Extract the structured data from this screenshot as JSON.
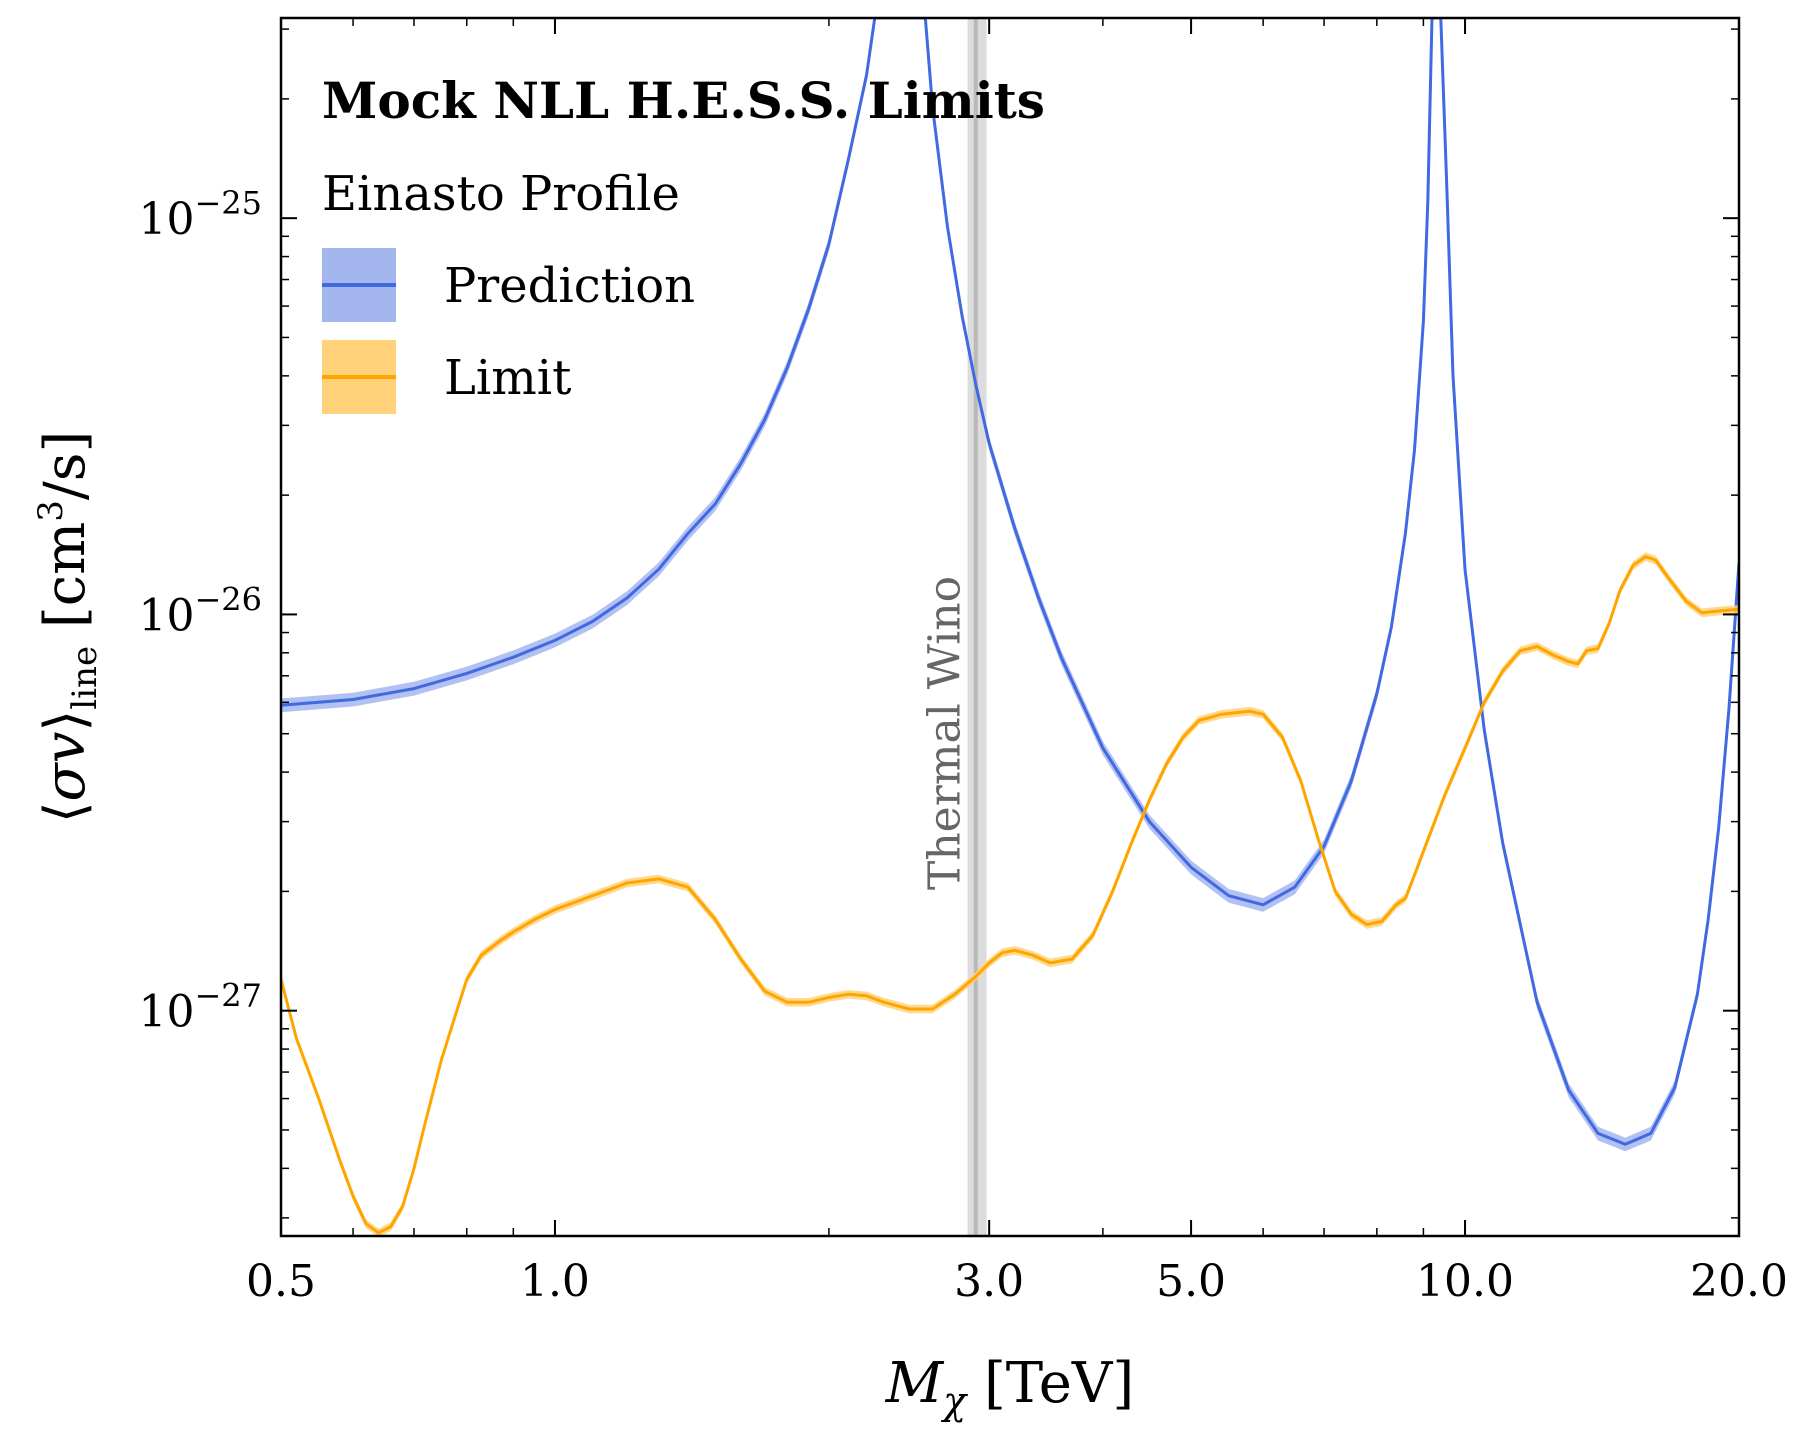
{
  "chart_data": {
    "type": "line",
    "title": "Mock NLL H.E.S.S. Limits",
    "subtitle": "Einasto Profile",
    "xlabel": "Mχ [TeV]",
    "ylabel": "⟨σv⟩line [cm3/s]",
    "xscale": "log",
    "yscale": "log",
    "xlim": [
      0.5,
      20.0
    ],
    "ylim": [
      2.7e-28,
      3.2e-25
    ],
    "x_ticks": [
      "0.5",
      "1.0",
      "3.0",
      "5.0",
      "10.0",
      "20.0"
    ],
    "x_tick_values": [
      0.5,
      1.0,
      3.0,
      5.0,
      10.0,
      20.0
    ],
    "y_ticks": [
      "10−27",
      "10−26",
      "10−25"
    ],
    "y_tick_values": [
      1e-27,
      1e-26,
      1e-25
    ],
    "legend_position": "top-left",
    "annotation": {
      "text": "Thermal Wino",
      "x": 2.9,
      "band": [
        2.84,
        2.98
      ]
    },
    "series": [
      {
        "name": "Prediction",
        "color": "#4169e1",
        "band_color": "#a4b6ee",
        "band_rel_width": 0.04,
        "points": [
          [
            0.5,
            5.9e-27
          ],
          [
            0.6,
            6.1e-27
          ],
          [
            0.7,
            6.5e-27
          ],
          [
            0.8,
            7.1e-27
          ],
          [
            0.9,
            7.8e-27
          ],
          [
            1.0,
            8.6e-27
          ],
          [
            1.1,
            9.6e-27
          ],
          [
            1.2,
            1.1e-26
          ],
          [
            1.3,
            1.3e-26
          ],
          [
            1.4,
            1.6e-26
          ],
          [
            1.5,
            1.9e-26
          ],
          [
            1.6,
            2.4e-26
          ],
          [
            1.7,
            3.1e-26
          ],
          [
            1.8,
            4.2e-26
          ],
          [
            1.9,
            5.9e-26
          ],
          [
            2.0,
            8.6e-26
          ],
          [
            2.1,
            1.4e-25
          ],
          [
            2.2,
            2.3e-25
          ],
          [
            2.25,
            3.3e-25
          ],
          [
            2.55,
            3.3e-25
          ],
          [
            2.6,
            1.9e-25
          ],
          [
            2.7,
            9.5e-26
          ],
          [
            2.8,
            5.7e-26
          ],
          [
            2.9,
            3.8e-26
          ],
          [
            3.0,
            2.7e-26
          ],
          [
            3.2,
            1.65e-26
          ],
          [
            3.4,
            1.1e-26
          ],
          [
            3.6,
            7.8e-27
          ],
          [
            4.0,
            4.6e-27
          ],
          [
            4.5,
            3e-27
          ],
          [
            5.0,
            2.3e-27
          ],
          [
            5.5,
            1.95e-27
          ],
          [
            6.0,
            1.85e-27
          ],
          [
            6.5,
            2.05e-27
          ],
          [
            7.0,
            2.6e-27
          ],
          [
            7.5,
            3.8e-27
          ],
          [
            8.0,
            6.3e-27
          ],
          [
            8.3,
            9.3e-27
          ],
          [
            8.6,
            1.6e-26
          ],
          [
            8.8,
            2.6e-26
          ],
          [
            9.0,
            5.5e-26
          ],
          [
            9.1,
            1.1e-25
          ],
          [
            9.2,
            3.3e-25
          ],
          [
            9.4,
            3.3e-25
          ],
          [
            9.55,
            1.2e-25
          ],
          [
            9.7,
            4e-26
          ],
          [
            10.0,
            1.3e-26
          ],
          [
            10.5,
            5.1e-27
          ],
          [
            11.0,
            2.65e-27
          ],
          [
            12.0,
            1.05e-27
          ],
          [
            13.0,
            6.3e-28
          ],
          [
            14.0,
            4.9e-28
          ],
          [
            15.0,
            4.6e-28
          ],
          [
            16.0,
            4.9e-28
          ],
          [
            17.0,
            6.4e-28
          ],
          [
            18.0,
            1.1e-27
          ],
          [
            18.5,
            1.7e-27
          ],
          [
            19.0,
            2.9e-27
          ],
          [
            19.5,
            5.8e-27
          ],
          [
            20.0,
            1.35e-26
          ]
        ]
      },
      {
        "name": "Limit",
        "color": "#ffa500",
        "band_color": "#ffd27a",
        "band_rel_width": 0.025,
        "points": [
          [
            0.5,
            1.2e-27
          ],
          [
            0.52,
            8.5e-28
          ],
          [
            0.55,
            6e-28
          ],
          [
            0.58,
            4.2e-28
          ],
          [
            0.6,
            3.4e-28
          ],
          [
            0.62,
            2.9e-28
          ],
          [
            0.64,
            2.75e-28
          ],
          [
            0.66,
            2.85e-28
          ],
          [
            0.68,
            3.2e-28
          ],
          [
            0.7,
            4e-28
          ],
          [
            0.72,
            5.2e-28
          ],
          [
            0.75,
            7.5e-28
          ],
          [
            0.78,
            1e-27
          ],
          [
            0.8,
            1.2e-27
          ],
          [
            0.83,
            1.38e-27
          ],
          [
            0.87,
            1.5e-27
          ],
          [
            0.9,
            1.58e-27
          ],
          [
            0.95,
            1.7e-27
          ],
          [
            1.0,
            1.8e-27
          ],
          [
            1.1,
            1.95e-27
          ],
          [
            1.2,
            2.1e-27
          ],
          [
            1.3,
            2.15e-27
          ],
          [
            1.4,
            2.05e-27
          ],
          [
            1.5,
            1.7e-27
          ],
          [
            1.6,
            1.35e-27
          ],
          [
            1.7,
            1.12e-27
          ],
          [
            1.8,
            1.05e-27
          ],
          [
            1.9,
            1.05e-27
          ],
          [
            2.0,
            1.08e-27
          ],
          [
            2.1,
            1.1e-27
          ],
          [
            2.2,
            1.09e-27
          ],
          [
            2.3,
            1.05e-27
          ],
          [
            2.45,
            1.01e-27
          ],
          [
            2.6,
            1.01e-27
          ],
          [
            2.75,
            1.1e-27
          ],
          [
            2.9,
            1.22e-27
          ],
          [
            3.0,
            1.32e-27
          ],
          [
            3.1,
            1.4e-27
          ],
          [
            3.2,
            1.42e-27
          ],
          [
            3.35,
            1.38e-27
          ],
          [
            3.5,
            1.32e-27
          ],
          [
            3.7,
            1.35e-27
          ],
          [
            3.9,
            1.55e-27
          ],
          [
            4.1,
            2e-27
          ],
          [
            4.3,
            2.65e-27
          ],
          [
            4.5,
            3.4e-27
          ],
          [
            4.7,
            4.2e-27
          ],
          [
            4.9,
            4.9e-27
          ],
          [
            5.1,
            5.4e-27
          ],
          [
            5.4,
            5.6e-27
          ],
          [
            5.8,
            5.7e-27
          ],
          [
            6.0,
            5.6e-27
          ],
          [
            6.3,
            4.9e-27
          ],
          [
            6.6,
            3.8e-27
          ],
          [
            6.9,
            2.7e-27
          ],
          [
            7.2,
            2e-27
          ],
          [
            7.5,
            1.75e-27
          ],
          [
            7.8,
            1.65e-27
          ],
          [
            8.1,
            1.68e-27
          ],
          [
            8.4,
            1.85e-27
          ],
          [
            8.6,
            1.92e-27
          ],
          [
            8.8,
            2.2e-27
          ],
          [
            9.1,
            2.7e-27
          ],
          [
            9.5,
            3.5e-27
          ],
          [
            10.0,
            4.6e-27
          ],
          [
            10.5,
            6e-27
          ],
          [
            11.0,
            7.2e-27
          ],
          [
            11.5,
            8.1e-27
          ],
          [
            12.0,
            8.3e-27
          ],
          [
            12.5,
            7.9e-27
          ],
          [
            13.0,
            7.6e-27
          ],
          [
            13.3,
            7.5e-27
          ],
          [
            13.6,
            8.1e-27
          ],
          [
            14.0,
            8.2e-27
          ],
          [
            14.4,
            9.5e-27
          ],
          [
            14.8,
            1.15e-26
          ],
          [
            15.3,
            1.33e-26
          ],
          [
            15.8,
            1.4e-26
          ],
          [
            16.2,
            1.37e-26
          ],
          [
            16.8,
            1.22e-26
          ],
          [
            17.5,
            1.08e-26
          ],
          [
            18.2,
            1.01e-26
          ],
          [
            19.0,
            1.02e-26
          ],
          [
            20.0,
            1.03e-26
          ]
        ]
      }
    ]
  }
}
